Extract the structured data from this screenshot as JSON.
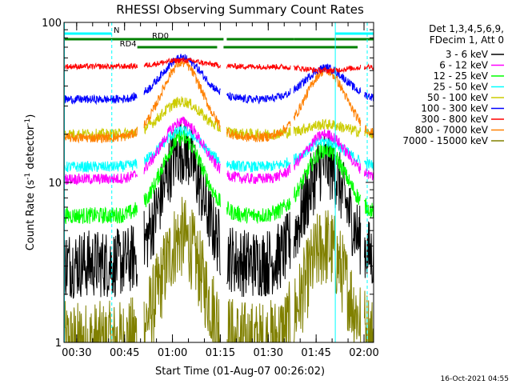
{
  "chart_data": {
    "type": "line",
    "title": "RHESSI Observing Summary Count Rates",
    "xlabel": "Start Time (01-Aug-07 00:26:02)",
    "ylabel_main": "Count Rate (s",
    "ylabel_sup": "-1",
    "ylabel_rest": " detector",
    "ylabel_sup2": "-1",
    "ylabel_end": ")",
    "y_scale": "log",
    "ylim": [
      1,
      100
    ],
    "xlim": [
      "00:26:02",
      "02:03:00"
    ],
    "y_ticks": [
      {
        "value": 1,
        "label": "1"
      },
      {
        "value": 10,
        "label": "10"
      },
      {
        "value": 100,
        "label": "100"
      }
    ],
    "x_ticks": [
      {
        "time": "00:30",
        "label": "00:30"
      },
      {
        "time": "00:45",
        "label": "00:45"
      },
      {
        "time": "01:00",
        "label": "01:00"
      },
      {
        "time": "01:15",
        "label": "01:15"
      },
      {
        "time": "01:30",
        "label": "01:30"
      },
      {
        "time": "01:45",
        "label": "01:45"
      },
      {
        "time": "02:00",
        "label": "02:00"
      }
    ],
    "legend_header": [
      "Det 1,3,4,5,6,9,",
      "FDecim 1, Att 0"
    ],
    "legend_placement": "right",
    "series": [
      {
        "name": "3 - 6 keV",
        "color": "#000000",
        "base": 3.1,
        "peak1": 16,
        "peak2": 13,
        "noise": 0.5
      },
      {
        "name": "6 - 12 keV",
        "color": "#ff00ff",
        "base": 10.5,
        "peak1": 24,
        "peak2": 20,
        "noise": 0.08
      },
      {
        "name": "12 - 25 keV",
        "color": "#00ff00",
        "base": 6.2,
        "peak1": 19,
        "peak2": 16,
        "noise": 0.12
      },
      {
        "name": "25 - 50 keV",
        "color": "#00ffff",
        "base": 12.5,
        "peak1": 21,
        "peak2": 18,
        "noise": 0.08
      },
      {
        "name": "50 - 100 keV",
        "color": "#cccc00",
        "base": 20,
        "peak1": 32,
        "peak2": 23,
        "noise": 0.08
      },
      {
        "name": "100 - 300 keV",
        "color": "#0000ff",
        "base": 33,
        "peak1": 60,
        "peak2": 52,
        "noise": 0.06
      },
      {
        "name": "300 - 800 keV",
        "color": "#ff0000",
        "base": 53,
        "peak1": 58,
        "peak2": 50,
        "noise": 0.04
      },
      {
        "name": "800 - 7000 keV",
        "color": "#ff8000",
        "base": 19,
        "peak1": 56,
        "peak2": 50,
        "noise": 0.07
      },
      {
        "name": "7000 - 15000 keV",
        "color": "#808000",
        "base": 1.0,
        "peak1": 4.5,
        "peak2": 4.0,
        "noise": 0.6
      }
    ],
    "gaps": [
      {
        "start": "00:49",
        "end": "00:51"
      },
      {
        "start": "01:15",
        "end": "01:17"
      },
      {
        "start": "01:37",
        "end": "01:38"
      },
      {
        "start": "01:59",
        "end": "02:00"
      }
    ],
    "peaks": [
      "01:03",
      "01:48"
    ],
    "flags": [
      {
        "label": "N",
        "color": "#00ffff",
        "level": "top",
        "start": "00:26",
        "end": "00:41"
      },
      {
        "label": "",
        "color": "#00ffff",
        "level": "top",
        "start": "01:51",
        "end": "02:03"
      },
      {
        "label": "RD0",
        "color": "#008000",
        "level": "mid",
        "start": "00:26",
        "end": "01:16"
      },
      {
        "label": "",
        "color": "#008000",
        "level": "mid",
        "start": "01:17",
        "end": "01:38"
      },
      {
        "label": "",
        "color": "#008000",
        "level": "mid",
        "start": "01:38",
        "end": "02:03"
      },
      {
        "label": "RD4",
        "color": "#008000",
        "level": "low",
        "start": "00:49",
        "end": "01:14"
      },
      {
        "label": "",
        "color": "#008000",
        "level": "low",
        "start": "01:16",
        "end": "01:58"
      }
    ],
    "vlines": [
      {
        "time": "00:26",
        "color": "#00ffff",
        "style": "solid"
      },
      {
        "time": "00:41",
        "color": "#00ffff",
        "style": "dashed"
      },
      {
        "time": "01:51",
        "color": "#00ffff",
        "style": "solid"
      },
      {
        "time": "02:01",
        "color": "#00ffff",
        "style": "dashed"
      }
    ],
    "timestamp": "16-Oct-2021 04:55"
  }
}
